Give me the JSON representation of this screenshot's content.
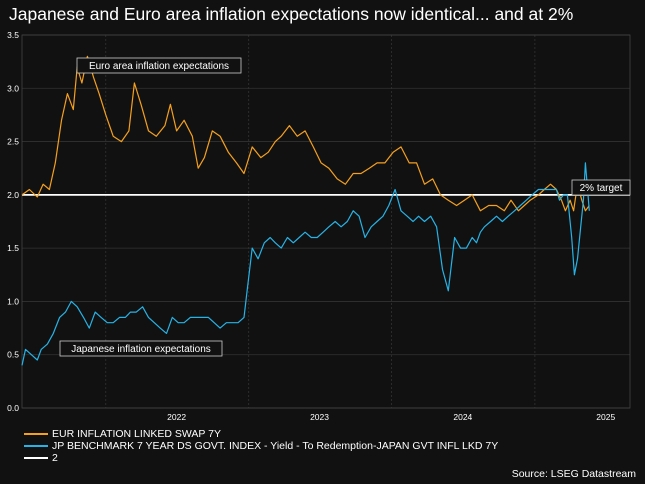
{
  "title": "Japanese and Euro area inflation expectations now identical... and at 2%",
  "source": "Source: LSEG Datastream",
  "colors": {
    "background": "#111111",
    "grid": "#333333",
    "euro": "#f5a01e",
    "japan": "#27b3e6",
    "target": "#ffffff"
  },
  "legend": [
    {
      "label": "EUR INFLATION LINKED SWAP 7Y",
      "color": "#f5a01e"
    },
    {
      "label": "JP BENCHMARK 7 YEAR DS GOVT. INDEX - Yield - To Redemption-JAPAN GVT INFL LKD 7Y",
      "color": "#27b3e6"
    },
    {
      "label": "2",
      "color": "#ffffff"
    }
  ],
  "annotations": {
    "euro": "Euro area inflation expectations",
    "japan": "Japanese inflation expectations",
    "target": "2% target"
  },
  "chart_data": {
    "type": "line",
    "title": "Japanese and Euro area inflation expectations now identical... and at 2%",
    "xlabel": "",
    "ylabel": "",
    "xlim": [
      "2021-06-01",
      "2025-09-01"
    ],
    "ylim": [
      0,
      3.5
    ],
    "x_ticks": [
      "2022",
      "2023",
      "2024",
      "2025"
    ],
    "y_ticks": [
      "0.0",
      "0.5",
      "1.0",
      "1.5",
      "2.0",
      "2.5",
      "3.0",
      "3.5"
    ],
    "grid": true,
    "legend_position": "bottom-left",
    "series": [
      {
        "name": "EUR INFLATION LINKED SWAP 7Y",
        "x": [
          "2021-06-01",
          "2021-06-20",
          "2021-07-10",
          "2021-07-25",
          "2021-08-10",
          "2021-08-25",
          "2021-09-10",
          "2021-09-25",
          "2021-10-10",
          "2021-10-20",
          "2021-11-01",
          "2021-11-15",
          "2021-12-01",
          "2021-12-15",
          "2022-01-01",
          "2022-01-20",
          "2022-02-10",
          "2022-03-01",
          "2022-03-15",
          "2022-04-01",
          "2022-04-20",
          "2022-05-10",
          "2022-06-01",
          "2022-06-15",
          "2022-07-01",
          "2022-07-20",
          "2022-08-10",
          "2022-08-25",
          "2022-09-10",
          "2022-09-30",
          "2022-10-20",
          "2022-11-10",
          "2022-12-01",
          "2022-12-20",
          "2023-01-10",
          "2023-02-01",
          "2023-02-20",
          "2023-03-10",
          "2023-03-25",
          "2023-04-15",
          "2023-05-05",
          "2023-05-25",
          "2023-06-15",
          "2023-07-05",
          "2023-07-25",
          "2023-08-15",
          "2023-09-05",
          "2023-09-25",
          "2023-10-15",
          "2023-11-05",
          "2023-11-25",
          "2023-12-15",
          "2024-01-05",
          "2024-01-25",
          "2024-02-15",
          "2024-03-05",
          "2024-03-25",
          "2024-04-15",
          "2024-05-05",
          "2024-05-25",
          "2024-06-15",
          "2024-07-05",
          "2024-07-25",
          "2024-08-15",
          "2024-09-05",
          "2024-09-25",
          "2024-10-15",
          "2024-11-01",
          "2024-11-20",
          "2024-12-05",
          "2024-12-20",
          "2025-01-10",
          "2025-01-25",
          "2025-02-10",
          "2025-02-25",
          "2025-03-10",
          "2025-03-20",
          "2025-04-01",
          "2025-04-10",
          "2025-04-20",
          "2025-05-01",
          "2025-05-10",
          "2025-05-20"
        ],
        "values": [
          2.0,
          2.05,
          1.98,
          2.1,
          2.05,
          2.3,
          2.7,
          2.95,
          2.8,
          3.2,
          3.05,
          3.3,
          3.1,
          2.95,
          2.75,
          2.55,
          2.5,
          2.6,
          3.05,
          2.85,
          2.6,
          2.55,
          2.65,
          2.85,
          2.6,
          2.7,
          2.55,
          2.25,
          2.35,
          2.6,
          2.55,
          2.4,
          2.3,
          2.2,
          2.45,
          2.35,
          2.4,
          2.5,
          2.55,
          2.65,
          2.55,
          2.6,
          2.45,
          2.3,
          2.25,
          2.15,
          2.1,
          2.2,
          2.2,
          2.25,
          2.3,
          2.3,
          2.4,
          2.45,
          2.3,
          2.3,
          2.1,
          2.15,
          2.0,
          1.95,
          1.9,
          1.95,
          2.0,
          1.85,
          1.9,
          1.9,
          1.85,
          1.95,
          1.85,
          1.9,
          1.95,
          2.0,
          2.05,
          2.1,
          2.05,
          1.95,
          1.85,
          1.95,
          1.85,
          2.1,
          1.95,
          1.85,
          1.9
        ]
      },
      {
        "name": "JP BENCHMARK 7 YEAR DS GOVT. INDEX - Yield - To Redemption-JAPAN GVT INFL LKD 7Y",
        "x": [
          "2021-06-01",
          "2021-06-10",
          "2021-06-25",
          "2021-07-10",
          "2021-07-20",
          "2021-08-05",
          "2021-08-20",
          "2021-09-05",
          "2021-09-20",
          "2021-10-05",
          "2021-10-20",
          "2021-11-05",
          "2021-11-20",
          "2021-12-05",
          "2021-12-20",
          "2022-01-05",
          "2022-01-20",
          "2022-02-05",
          "2022-02-20",
          "2022-03-05",
          "2022-03-20",
          "2022-04-05",
          "2022-04-20",
          "2022-05-05",
          "2022-05-20",
          "2022-06-05",
          "2022-06-20",
          "2022-07-05",
          "2022-07-20",
          "2022-08-05",
          "2022-08-20",
          "2022-09-05",
          "2022-09-20",
          "2022-10-05",
          "2022-10-20",
          "2022-11-05",
          "2022-11-20",
          "2022-12-05",
          "2022-12-20",
          "2022-12-28",
          "2023-01-10",
          "2023-01-25",
          "2023-02-10",
          "2023-02-25",
          "2023-03-10",
          "2023-03-25",
          "2023-04-10",
          "2023-04-25",
          "2023-05-10",
          "2023-05-25",
          "2023-06-10",
          "2023-06-25",
          "2023-07-10",
          "2023-07-25",
          "2023-08-10",
          "2023-08-25",
          "2023-09-10",
          "2023-09-25",
          "2023-10-10",
          "2023-10-25",
          "2023-11-10",
          "2023-11-25",
          "2023-12-10",
          "2023-12-25",
          "2024-01-10",
          "2024-01-25",
          "2024-02-10",
          "2024-02-25",
          "2024-03-10",
          "2024-03-25",
          "2024-04-10",
          "2024-04-25",
          "2024-05-10",
          "2024-05-25",
          "2024-06-10",
          "2024-06-25",
          "2024-07-10",
          "2024-07-25",
          "2024-08-05",
          "2024-08-15",
          "2024-08-25",
          "2024-09-10",
          "2024-09-25",
          "2024-10-10",
          "2024-10-25",
          "2024-11-10",
          "2024-11-25",
          "2024-12-10",
          "2024-12-25",
          "2025-01-10",
          "2025-01-25",
          "2025-02-10",
          "2025-02-25",
          "2025-03-05",
          "2025-03-15",
          "2025-03-25",
          "2025-04-05",
          "2025-04-12",
          "2025-04-20",
          "2025-04-28",
          "2025-05-05",
          "2025-05-10",
          "2025-05-20"
        ],
        "values": [
          0.4,
          0.55,
          0.5,
          0.45,
          0.55,
          0.6,
          0.7,
          0.85,
          0.9,
          1.0,
          0.95,
          0.85,
          0.75,
          0.9,
          0.85,
          0.8,
          0.8,
          0.85,
          0.85,
          0.9,
          0.9,
          0.95,
          0.85,
          0.8,
          0.75,
          0.7,
          0.85,
          0.8,
          0.8,
          0.85,
          0.85,
          0.85,
          0.85,
          0.8,
          0.75,
          0.8,
          0.8,
          0.8,
          0.85,
          1.1,
          1.5,
          1.4,
          1.55,
          1.6,
          1.55,
          1.5,
          1.6,
          1.55,
          1.6,
          1.65,
          1.6,
          1.6,
          1.65,
          1.7,
          1.75,
          1.7,
          1.75,
          1.85,
          1.8,
          1.6,
          1.7,
          1.75,
          1.8,
          1.9,
          2.05,
          1.85,
          1.8,
          1.75,
          1.8,
          1.75,
          1.8,
          1.7,
          1.3,
          1.1,
          1.6,
          1.5,
          1.5,
          1.6,
          1.55,
          1.65,
          1.7,
          1.75,
          1.8,
          1.75,
          1.8,
          1.85,
          1.9,
          1.95,
          2.0,
          2.05,
          2.05,
          2.05,
          2.05,
          1.95,
          2.0,
          2.0,
          1.6,
          1.25,
          1.4,
          1.7,
          1.95,
          2.3,
          1.85
        ]
      },
      {
        "name": "2",
        "x": [
          "2021-06-01",
          "2025-09-01"
        ],
        "values": [
          2.0,
          2.0
        ]
      }
    ]
  }
}
